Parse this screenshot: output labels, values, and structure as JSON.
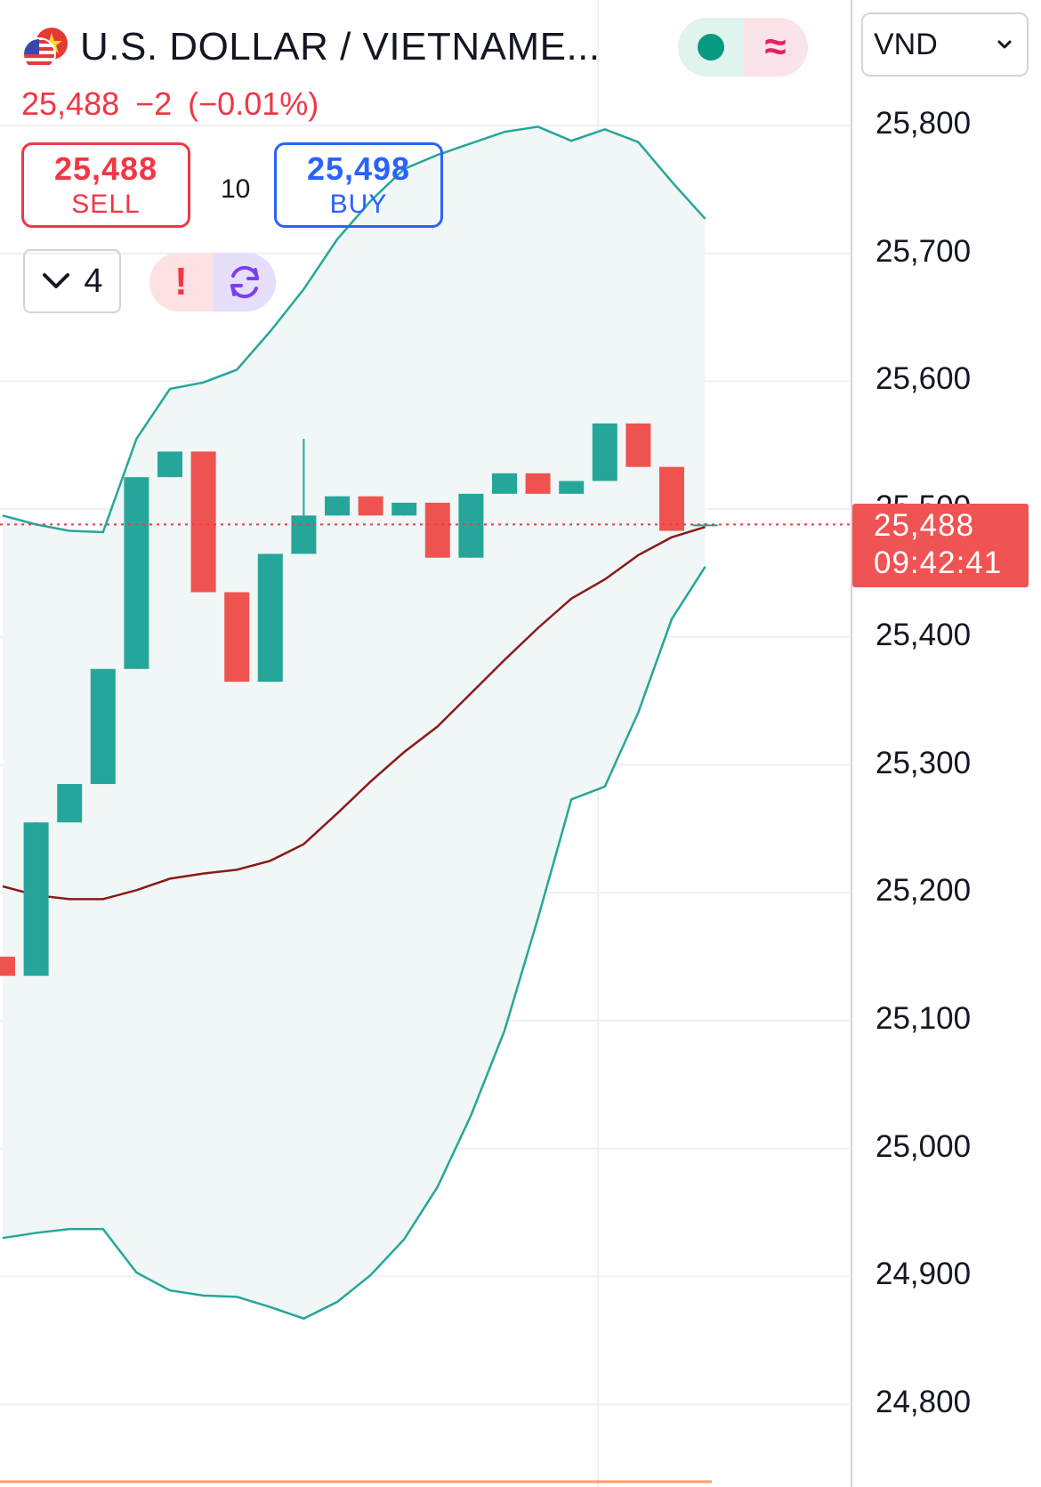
{
  "header": {
    "symbol_title": "U.S. DOLLAR / VIETNAME...",
    "price": "25,488",
    "change": "−2",
    "change_pct": "(−0.01%)",
    "sell": {
      "value": "25,488",
      "label": "SELL"
    },
    "spread": "10",
    "buy": {
      "value": "25,498",
      "label": "BUY"
    },
    "collapse_count": "4",
    "alert_glyph": "!",
    "status_icon": "market-open-dot",
    "series_icon_glyph": "≈"
  },
  "currency_select": {
    "value": "VND"
  },
  "price_axis": {
    "labels": [
      "25,800",
      "25,700",
      "25,600",
      "25,500",
      "25,400",
      "25,300",
      "25,200",
      "25,100",
      "25,000",
      "24,900",
      "24,800"
    ]
  },
  "last_price_tag": {
    "price": "25,488",
    "countdown": "09:42:41"
  },
  "colors": {
    "up": "#26a69a",
    "down": "#ef5350",
    "band": "#26a69a",
    "basis": "#8b1a1a",
    "band_fill": "#f0f7f6",
    "grid": "#eceff3",
    "price_line": "#f23645"
  },
  "chart_data": {
    "type": "candlestick",
    "ylim": [
      24750,
      25830
    ],
    "y_ticks": [
      25800,
      25700,
      25600,
      25500,
      25400,
      25300,
      25200,
      25100,
      25000,
      24900,
      24800
    ],
    "last_price": 25488,
    "candles": [
      {
        "open": 25150,
        "close": 25135,
        "high": 25150,
        "low": 25135
      },
      {
        "open": 25135,
        "close": 25255,
        "high": 25255,
        "low": 25135
      },
      {
        "open": 25255,
        "close": 25285,
        "high": 25285,
        "low": 25255
      },
      {
        "open": 25285,
        "close": 25375,
        "high": 25375,
        "low": 25285
      },
      {
        "open": 25375,
        "close": 25525,
        "high": 25525,
        "low": 25375
      },
      {
        "open": 25525,
        "close": 25545,
        "high": 25545,
        "low": 25525
      },
      {
        "open": 25545,
        "close": 25435,
        "high": 25545,
        "low": 25435
      },
      {
        "open": 25435,
        "close": 25365,
        "high": 25435,
        "low": 25365
      },
      {
        "open": 25365,
        "close": 25465,
        "high": 25465,
        "low": 25365
      },
      {
        "open": 25465,
        "close": 25495,
        "high": 25555,
        "low": 25465
      },
      {
        "open": 25495,
        "close": 25510,
        "high": 25510,
        "low": 25495
      },
      {
        "open": 25510,
        "close": 25495,
        "high": 25510,
        "low": 25495
      },
      {
        "open": 25495,
        "close": 25505,
        "high": 25505,
        "low": 25495
      },
      {
        "open": 25505,
        "close": 25462,
        "high": 25505,
        "low": 25462
      },
      {
        "open": 25462,
        "close": 25512,
        "high": 25512,
        "low": 25462
      },
      {
        "open": 25512,
        "close": 25528,
        "high": 25528,
        "low": 25512
      },
      {
        "open": 25528,
        "close": 25512,
        "high": 25528,
        "low": 25512
      },
      {
        "open": 25512,
        "close": 25522,
        "high": 25522,
        "low": 25512
      },
      {
        "open": 25522,
        "close": 25567,
        "high": 25567,
        "low": 25522
      },
      {
        "open": 25567,
        "close": 25533,
        "high": 25567,
        "low": 25533
      },
      {
        "open": 25533,
        "close": 25483,
        "high": 25533,
        "low": 25483
      },
      {
        "open": 25488,
        "close": 25488,
        "high": 25489,
        "low": 25487
      }
    ],
    "bollinger": {
      "upper": [
        25495,
        25488,
        25483,
        25482,
        25555,
        25594,
        25599,
        25609,
        25639,
        25672,
        25711,
        25741,
        25766,
        25777,
        25786,
        25795,
        25799,
        25788,
        25797,
        25787,
        25756,
        25727
      ],
      "basis": [
        25205,
        25198,
        25195,
        25195,
        25202,
        25211,
        25215,
        25218,
        25225,
        25238,
        25262,
        25287,
        25310,
        25330,
        25356,
        25382,
        25407,
        25430,
        25445,
        25464,
        25478,
        25486
      ],
      "lower": [
        24930,
        24934,
        24937,
        24937,
        24903,
        24889,
        24885,
        24884,
        24876,
        24867,
        24880,
        24901,
        24929,
        24970,
        25026,
        25092,
        25180,
        25273,
        25283,
        25341,
        25414,
        25455
      ]
    }
  }
}
